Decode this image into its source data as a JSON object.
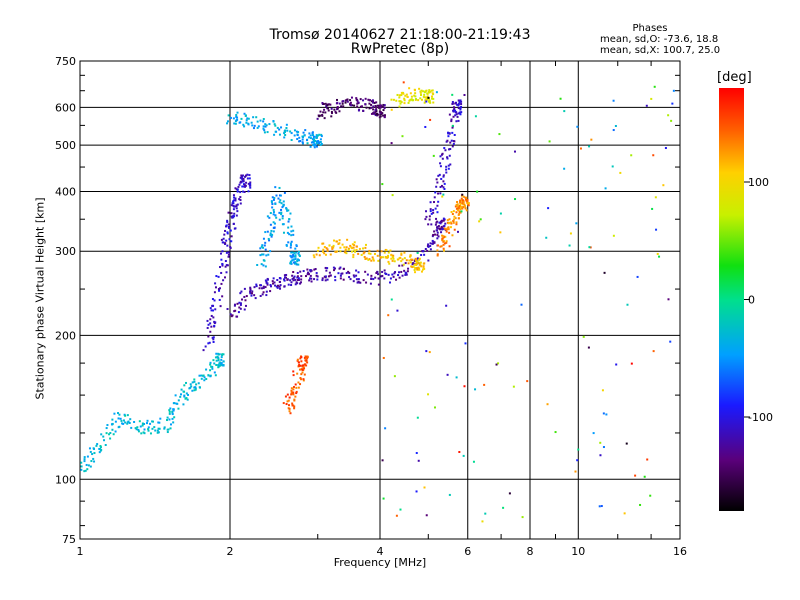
{
  "title": {
    "line1": "Tromsø 20140627 21:18:00-21:19:43",
    "line2": "RwPretec (8p)"
  },
  "phases": {
    "heading": "Phases",
    "line_o": "mean, sd,O: -73.6, 18.8",
    "line_x": "mean, sd,X: 100.7, 25.0"
  },
  "colorbar": {
    "unit": "[deg]",
    "ticks": [
      "100",
      "0",
      "-100"
    ],
    "tick_values": [
      100,
      0,
      -100
    ],
    "range": [
      -180,
      180
    ]
  },
  "chart_data": {
    "type": "scatter",
    "xlabel": "Frequency [MHz]",
    "ylabel": "Stationary phase Virtual Height [km]",
    "x_scale": "log",
    "y_scale": "log",
    "xlim": [
      1,
      16
    ],
    "ylim": [
      75,
      750
    ],
    "x_ticks": [
      1,
      2,
      4,
      6,
      8,
      10,
      16
    ],
    "x_tick_labels": [
      "1",
      "2",
      "4",
      "6",
      "8",
      "10",
      "16"
    ],
    "y_ticks": [
      75,
      100,
      200,
      300,
      400,
      500,
      600,
      750
    ],
    "y_tick_labels": [
      "75",
      "100",
      "200",
      "300",
      "400",
      "500",
      "600",
      "750"
    ],
    "grid": true,
    "color_variable": "phase [deg]",
    "traces": [
      {
        "x": [
          1.0,
          1.1,
          1.2,
          1.35,
          1.5,
          1.6,
          1.75,
          1.9
        ],
        "y": [
          105,
          118,
          135,
          128,
          130,
          150,
          160,
          178
        ],
        "phase": -30
      },
      {
        "x": [
          1.8,
          1.88,
          1.95,
          2.0,
          2.05,
          2.15
        ],
        "y": [
          190,
          230,
          290,
          340,
          380,
          420
        ],
        "phase": -110
      },
      {
        "x": [
          2.0,
          2.2,
          2.4,
          2.6,
          2.8,
          3.1,
          3.5,
          4.0,
          4.5,
          5.0,
          5.3
        ],
        "y": [
          220,
          245,
          255,
          260,
          265,
          270,
          268,
          262,
          275,
          300,
          340
        ],
        "phase": -120
      },
      {
        "x": [
          2.3,
          2.4,
          2.5,
          2.6,
          2.7
        ],
        "y": [
          280,
          330,
          400,
          340,
          290
        ],
        "phase": -45
      },
      {
        "x": [
          3.0,
          3.3,
          3.6,
          4.0,
          4.4,
          4.8
        ],
        "y": [
          300,
          310,
          300,
          295,
          290,
          280
        ],
        "phase": 110
      },
      {
        "x": [
          3.05,
          3.2,
          3.5,
          3.8,
          4.0
        ],
        "y": [
          585,
          600,
          610,
          605,
          590
        ],
        "phase": -140
      },
      {
        "x": [
          2.0,
          2.2,
          2.5,
          2.8,
          3.0
        ],
        "y": [
          575,
          560,
          540,
          520,
          510
        ],
        "phase": -40
      },
      {
        "x": [
          5.0,
          5.3,
          5.5,
          5.7
        ],
        "y": [
          340,
          420,
          500,
          600
        ],
        "phase": -110
      },
      {
        "x": [
          5.3,
          5.5,
          5.7,
          5.9
        ],
        "y": [
          300,
          330,
          360,
          380
        ],
        "phase": 130
      },
      {
        "x": [
          2.6,
          2.7,
          2.8
        ],
        "y": [
          140,
          155,
          175
        ],
        "phase": 150
      },
      {
        "x": [
          4.3,
          4.6,
          5.0
        ],
        "y": [
          610,
          640,
          630
        ],
        "phase": 90
      }
    ]
  }
}
